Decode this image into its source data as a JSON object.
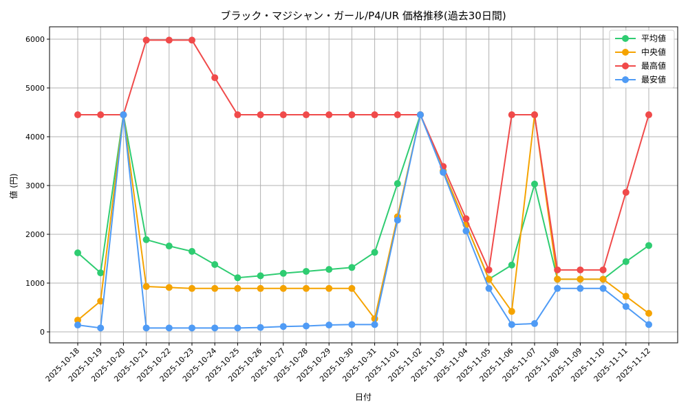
{
  "chart_data": {
    "type": "line",
    "title": "ブラック・マジシャン・ガール/P4/UR 価格推移(過去30日間)",
    "xlabel": "日付",
    "ylabel": "値 (円)",
    "ylim": [
      -200,
      6250
    ],
    "yticks": [
      0,
      1000,
      2000,
      3000,
      4000,
      5000,
      6000
    ],
    "grid": true,
    "legend_position": "upper right",
    "categories": [
      "2025-10-18",
      "2025-10-19",
      "2025-10-20",
      "2025-10-21",
      "2025-10-22",
      "2025-10-23",
      "2025-10-24",
      "2025-10-25",
      "2025-10-26",
      "2025-10-27",
      "2025-10-28",
      "2025-10-29",
      "2025-10-30",
      "2025-10-31",
      "2025-11-01",
      "2025-11-02",
      "2025-11-03",
      "2025-11-04",
      "2025-11-05",
      "2025-11-06",
      "2025-11-07",
      "2025-11-08",
      "2025-11-09",
      "2025-11-10",
      "2025-11-11",
      "2025-11-12"
    ],
    "series": [
      {
        "name": "平均値",
        "color": "#2ecc71",
        "values": [
          1620,
          1210,
          4450,
          1890,
          1760,
          1650,
          1380,
          1110,
          1150,
          1200,
          1240,
          1280,
          1320,
          1630,
          3040,
          4450,
          3300,
          2200,
          1080,
          1370,
          3030,
          1080,
          1080,
          1080,
          1440,
          1770
        ]
      },
      {
        "name": "中央値",
        "color": "#f5a300",
        "values": [
          240,
          630,
          4450,
          930,
          910,
          890,
          890,
          890,
          890,
          890,
          890,
          890,
          890,
          270,
          2360,
          4450,
          3300,
          2200,
          1080,
          420,
          4450,
          1080,
          1080,
          1080,
          730,
          380
        ]
      },
      {
        "name": "最高値",
        "color": "#f04a4a",
        "values": [
          4450,
          4450,
          4450,
          5980,
          5980,
          5980,
          5210,
          4450,
          4450,
          4450,
          4450,
          4450,
          4450,
          4450,
          4450,
          4450,
          3390,
          2320,
          1270,
          4450,
          4450,
          1270,
          1270,
          1270,
          2860,
          4450
        ]
      },
      {
        "name": "最安値",
        "color": "#4f9bf5",
        "values": [
          140,
          80,
          4450,
          80,
          80,
          80,
          80,
          80,
          90,
          110,
          120,
          140,
          150,
          150,
          2290,
          4450,
          3270,
          2070,
          890,
          150,
          170,
          890,
          890,
          890,
          520,
          150
        ]
      }
    ]
  }
}
